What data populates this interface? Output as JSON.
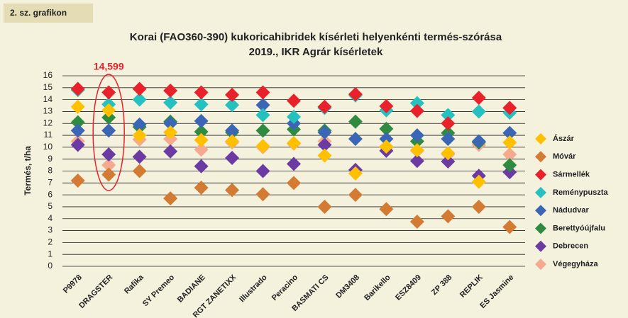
{
  "chart_data": {
    "type": "scatter",
    "badge": "2. sz. grafikon",
    "title": "Korai (FAO360-390) kukoricahibridek kísérleti helyenkénti termés-szórása",
    "subtitle": "2019., IKR Agrár kísérletek",
    "annotation": "14,599",
    "y_label": "Termés, t/ha",
    "categories": [
      "P9978",
      "DRAGSTER",
      "Rafika",
      "SY Premeo",
      "BADIANE",
      "RGT ZANETIXX",
      "Illustrado",
      "Peracino",
      "BASMATI CS",
      "DM3408",
      "Barikello",
      "ESZ8409",
      "ZP 388",
      "REPLIK",
      "ES Jasmine"
    ],
    "ylim": [
      0,
      16
    ],
    "yticks": [
      0,
      1,
      2,
      3,
      4,
      5,
      6,
      7,
      8,
      9,
      10,
      11,
      12,
      13,
      14,
      15,
      16
    ],
    "grid": true,
    "legend": "right",
    "series": [
      {
        "name": "Végegyháza",
        "color": "#f5a98e",
        "values": [
          10.5,
          8.5,
          10.65,
          10.7,
          9.8,
          10.4,
          10.0,
          10.3,
          10.5,
          7.8,
          10.0,
          9.7,
          9.4,
          10.2,
          9.4
        ]
      },
      {
        "name": "Debrecen",
        "color": "#6b3aa3",
        "values": [
          10.2,
          9.4,
          9.2,
          9.65,
          8.4,
          9.1,
          8.0,
          8.6,
          10.2,
          8.1,
          9.7,
          8.85,
          8.8,
          7.6,
          7.9
        ]
      },
      {
        "name": "Móvár",
        "color": "#d37b32",
        "values": [
          7.2,
          7.7,
          8.0,
          5.7,
          6.6,
          6.4,
          6.05,
          7.0,
          5.0,
          6.0,
          4.8,
          3.75,
          4.2,
          5.0,
          3.3
        ]
      },
      {
        "name": "Berettyóújfalu",
        "color": "#2e8b40",
        "values": [
          12.1,
          12.5,
          11.7,
          12.15,
          11.3,
          11.25,
          11.4,
          11.5,
          11.4,
          12.15,
          11.55,
          10.5,
          11.2,
          10.4,
          8.5
        ]
      },
      {
        "name": "Nádudvar",
        "color": "#3b66b5",
        "values": [
          11.4,
          11.4,
          11.9,
          12.0,
          12.2,
          11.4,
          13.55,
          12.0,
          11.25,
          10.7,
          10.7,
          11.0,
          10.7,
          10.5,
          11.2
        ]
      },
      {
        "name": "Reménypuszta",
        "color": "#25c0c0",
        "values": [
          14.8,
          13.6,
          14.0,
          13.75,
          13.6,
          13.55,
          12.7,
          12.55,
          13.3,
          14.35,
          13.1,
          13.7,
          12.7,
          13.0,
          12.9
        ]
      },
      {
        "name": "Sármellék",
        "color": "#e8212b",
        "values": [
          14.9,
          14.6,
          14.9,
          14.75,
          14.6,
          14.4,
          14.6,
          13.9,
          13.4,
          14.45,
          13.45,
          13.05,
          12.0,
          14.15,
          13.3
        ]
      },
      {
        "name": "Ászár",
        "color": "#ffc000",
        "values": [
          13.4,
          13.1,
          11.0,
          11.25,
          10.6,
          10.5,
          10.1,
          10.35,
          9.3,
          7.8,
          10.05,
          9.75,
          9.5,
          7.1,
          10.4
        ]
      }
    ],
    "legend_order": [
      7,
      2,
      6,
      5,
      4,
      3,
      1,
      0
    ]
  }
}
